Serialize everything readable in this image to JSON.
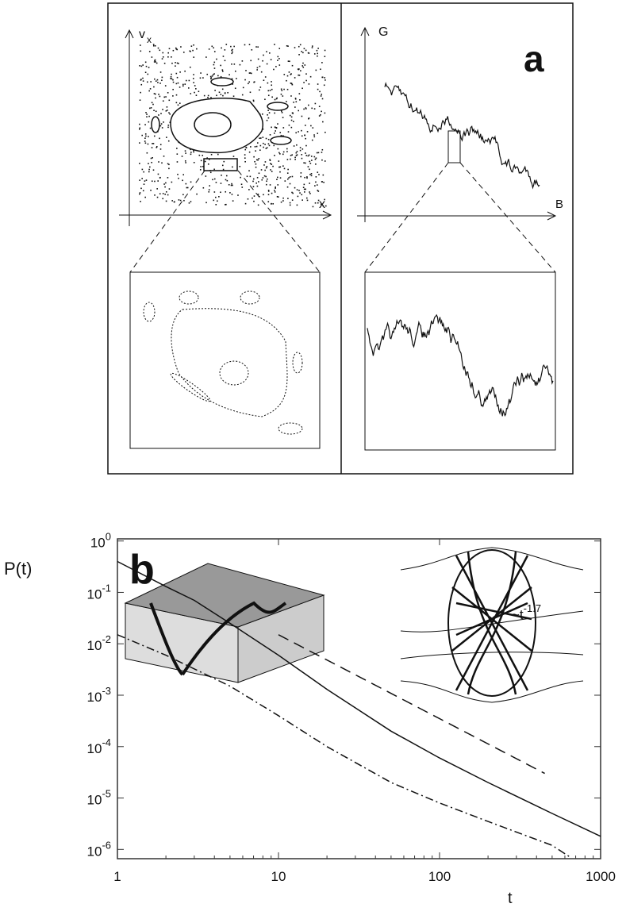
{
  "panel_a": {
    "label": "a",
    "left_y": "v",
    "left_y_sub": "x",
    "left_x": "x",
    "right_y": "G",
    "right_x": "B"
  },
  "chart_data": {
    "type": "line",
    "panel_label": "b",
    "y_label": "P(t)",
    "x_label": "t",
    "log_x": true,
    "log_y": true,
    "xlim": [
      1,
      1000
    ],
    "ylim": [
      6.6e-07,
      1.1
    ],
    "xticks": [
      1,
      10,
      100,
      1000
    ],
    "yticks": [
      {
        "value": 1,
        "label": "10",
        "exponent": "0"
      },
      {
        "value": 0.1,
        "label": "10",
        "exponent": "-1"
      },
      {
        "value": 0.01,
        "label": "10",
        "exponent": "-2"
      },
      {
        "value": 0.001,
        "label": "10",
        "exponent": "-3"
      },
      {
        "value": 0.0001,
        "label": "10",
        "exponent": "-4"
      },
      {
        "value": 1e-05,
        "label": "10",
        "exponent": "-5"
      },
      {
        "value": 1e-06,
        "label": "10",
        "exponent": "-6"
      }
    ],
    "annotation": {
      "text": "~t",
      "exponent": "-1.7"
    },
    "series": [
      {
        "color": "#111111",
        "dash": "solid",
        "x": [
          1,
          2,
          3,
          5,
          10,
          20,
          50,
          100,
          200,
          500,
          1000
        ],
        "values": [
          0.4,
          0.13,
          0.07,
          0.025,
          0.006,
          0.0013,
          0.0002,
          6e-05,
          2e-05,
          5e-06,
          1.8e-06
        ]
      },
      {
        "color": "#111111",
        "dash": "dashdot",
        "x": [
          1,
          2,
          5,
          10,
          20,
          50,
          100,
          200,
          500,
          650
        ],
        "values": [
          0.015,
          0.006,
          0.0015,
          0.0004,
          0.0001,
          2e-05,
          8e-06,
          3.5e-06,
          1.2e-06,
          7e-07
        ]
      },
      {
        "color": "#111111",
        "dash": "dashed",
        "x": [
          10,
          450
        ],
        "values": [
          0.015,
          3e-05
        ]
      }
    ]
  }
}
